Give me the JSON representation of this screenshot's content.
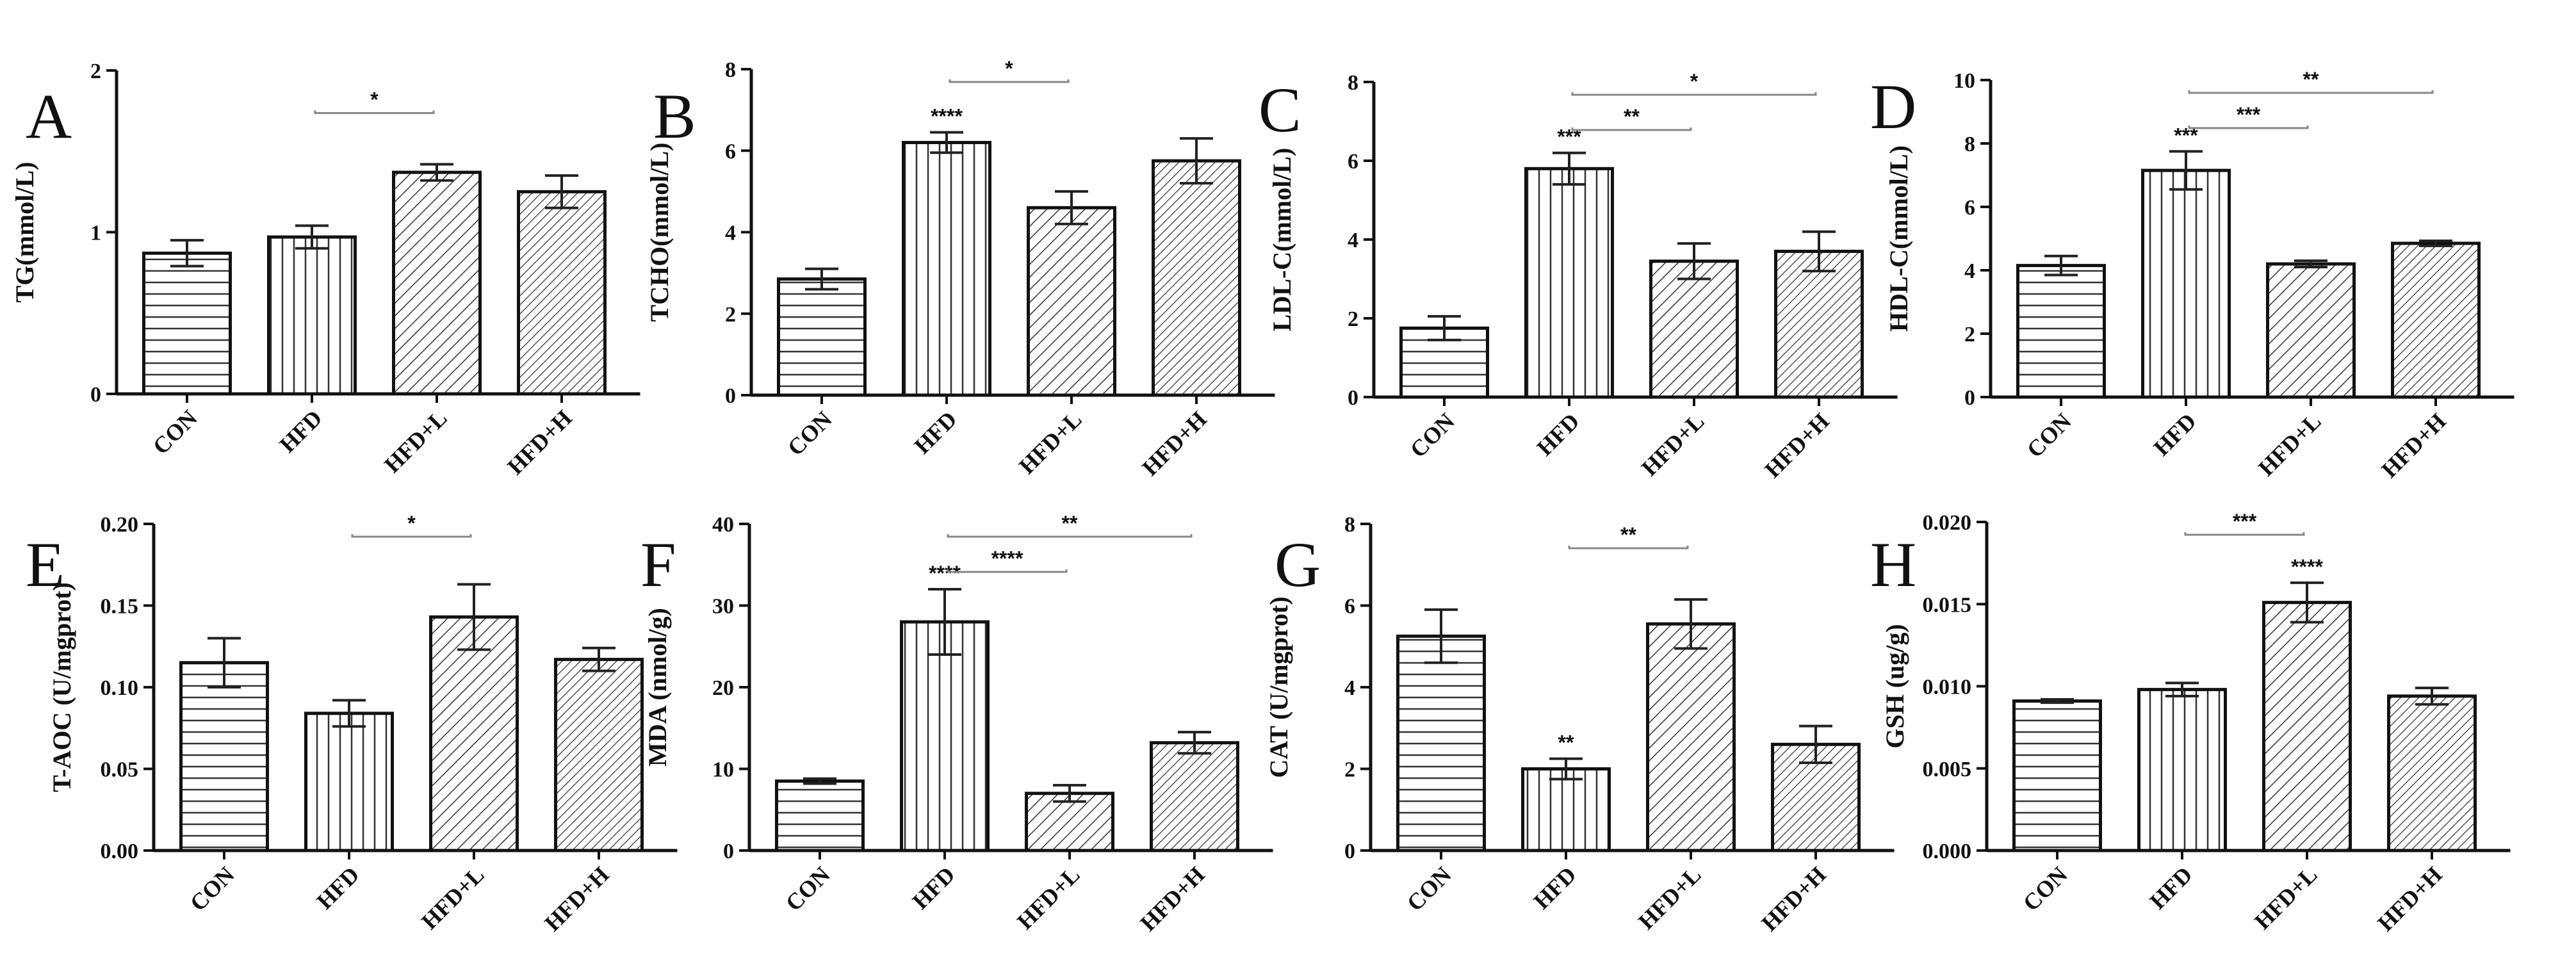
{
  "chart_data": [
    {
      "type": "bar",
      "letter": "A",
      "ylabel": "TG(mmol/L)",
      "categories": [
        "CON",
        "HFD",
        "HFD+L",
        "HFD+H"
      ],
      "values": [
        0.87,
        0.97,
        1.37,
        1.25
      ],
      "errors": [
        0.08,
        0.07,
        0.05,
        0.1
      ],
      "ylim": [
        0,
        2
      ],
      "yticks": [
        "0",
        "1",
        "2"
      ],
      "bar_sig": [
        "",
        "",
        "",
        ""
      ],
      "comparisons": [
        {
          "from": "HFD",
          "to": "HFD+L",
          "label": "*"
        }
      ]
    },
    {
      "type": "bar",
      "letter": "B",
      "ylabel": "TCHO(mmol/L)",
      "categories": [
        "CON",
        "HFD",
        "HFD+L",
        "HFD+H"
      ],
      "values": [
        2.85,
        6.2,
        4.6,
        5.75
      ],
      "errors": [
        0.25,
        0.25,
        0.4,
        0.55
      ],
      "ylim": [
        0,
        8
      ],
      "yticks": [
        "0",
        "2",
        "4",
        "6",
        "8"
      ],
      "bar_sig": [
        "",
        "****",
        "",
        ""
      ],
      "comparisons": [
        {
          "from": "HFD",
          "to": "HFD+L",
          "label": "*"
        }
      ]
    },
    {
      "type": "bar",
      "letter": "C",
      "ylabel": "LDL-C(mmol/L)",
      "categories": [
        "CON",
        "HFD",
        "HFD+L",
        "HFD+H"
      ],
      "values": [
        1.75,
        5.8,
        3.45,
        3.7
      ],
      "errors": [
        0.3,
        0.4,
        0.45,
        0.5
      ],
      "ylim": [
        0,
        8
      ],
      "yticks": [
        "0",
        "2",
        "4",
        "6",
        "8"
      ],
      "bar_sig": [
        "",
        "***",
        "",
        ""
      ],
      "comparisons": [
        {
          "from": "HFD",
          "to": "HFD+L",
          "label": "**"
        },
        {
          "from": "HFD",
          "to": "HFD+H",
          "label": "*"
        }
      ]
    },
    {
      "type": "bar",
      "letter": "D",
      "ylabel": "HDL-C(mmol/L)",
      "categories": [
        "CON",
        "HFD",
        "HFD+L",
        "HFD+H"
      ],
      "values": [
        4.15,
        7.15,
        4.2,
        4.85
      ],
      "errors": [
        0.3,
        0.6,
        0.1,
        0.08
      ],
      "ylim": [
        0,
        10
      ],
      "yticks": [
        "0",
        "2",
        "4",
        "6",
        "8",
        "10"
      ],
      "bar_sig": [
        "",
        "***",
        "",
        ""
      ],
      "comparisons": [
        {
          "from": "HFD",
          "to": "HFD+L",
          "label": "***"
        },
        {
          "from": "HFD",
          "to": "HFD+H",
          "label": "**"
        }
      ]
    },
    {
      "type": "bar",
      "letter": "E",
      "ylabel": "T-AOC (U/mgprot)",
      "categories": [
        "CON",
        "HFD",
        "HFD+L",
        "HFD+H"
      ],
      "values": [
        0.115,
        0.084,
        0.143,
        0.117
      ],
      "errors": [
        0.015,
        0.008,
        0.02,
        0.007
      ],
      "ylim": [
        0,
        0.2
      ],
      "yticks": [
        "0.00",
        "0.05",
        "0.10",
        "0.15",
        "0.20"
      ],
      "bar_sig": [
        "",
        "",
        "",
        ""
      ],
      "comparisons": [
        {
          "from": "HFD",
          "to": "HFD+L",
          "label": "*"
        }
      ]
    },
    {
      "type": "bar",
      "letter": "F",
      "ylabel": "MDA (nmol/g)",
      "categories": [
        "CON",
        "HFD",
        "HFD+L",
        "HFD+H"
      ],
      "values": [
        8.5,
        28,
        7,
        13.2
      ],
      "errors": [
        0.3,
        4,
        1,
        1.3
      ],
      "ylim": [
        0,
        40
      ],
      "yticks": [
        "0",
        "10",
        "20",
        "30",
        "40"
      ],
      "bar_sig": [
        "",
        "****",
        "",
        ""
      ],
      "comparisons": [
        {
          "from": "HFD",
          "to": "HFD+L",
          "label": "****"
        },
        {
          "from": "HFD",
          "to": "HFD+H",
          "label": "**"
        }
      ]
    },
    {
      "type": "bar",
      "letter": "G",
      "ylabel": "CAT (U/mgprot)",
      "categories": [
        "CON",
        "HFD",
        "HFD+L",
        "HFD+H"
      ],
      "values": [
        5.25,
        2.0,
        5.55,
        2.6
      ],
      "errors": [
        0.65,
        0.25,
        0.6,
        0.45
      ],
      "ylim": [
        0,
        8
      ],
      "yticks": [
        "0",
        "2",
        "4",
        "6",
        "8"
      ],
      "bar_sig": [
        "",
        "**",
        "",
        ""
      ],
      "comparisons": [
        {
          "from": "HFD",
          "to": "HFD+L",
          "label": "**"
        }
      ]
    },
    {
      "type": "bar",
      "letter": "H",
      "ylabel": "GSH (ug/g)",
      "categories": [
        "CON",
        "HFD",
        "HFD+L",
        "HFD+H"
      ],
      "values": [
        0.0091,
        0.0098,
        0.0151,
        0.0094
      ],
      "errors": [
        0.0001,
        0.0004,
        0.0012,
        0.0005
      ],
      "ylim": [
        0,
        0.02
      ],
      "yticks": [
        "0.000",
        "0.005",
        "0.010",
        "0.015",
        "0.020"
      ],
      "bar_sig": [
        "",
        "",
        "****",
        ""
      ],
      "comparisons": [
        {
          "from": "HFD",
          "to": "HFD+L",
          "label": "***"
        }
      ]
    }
  ]
}
